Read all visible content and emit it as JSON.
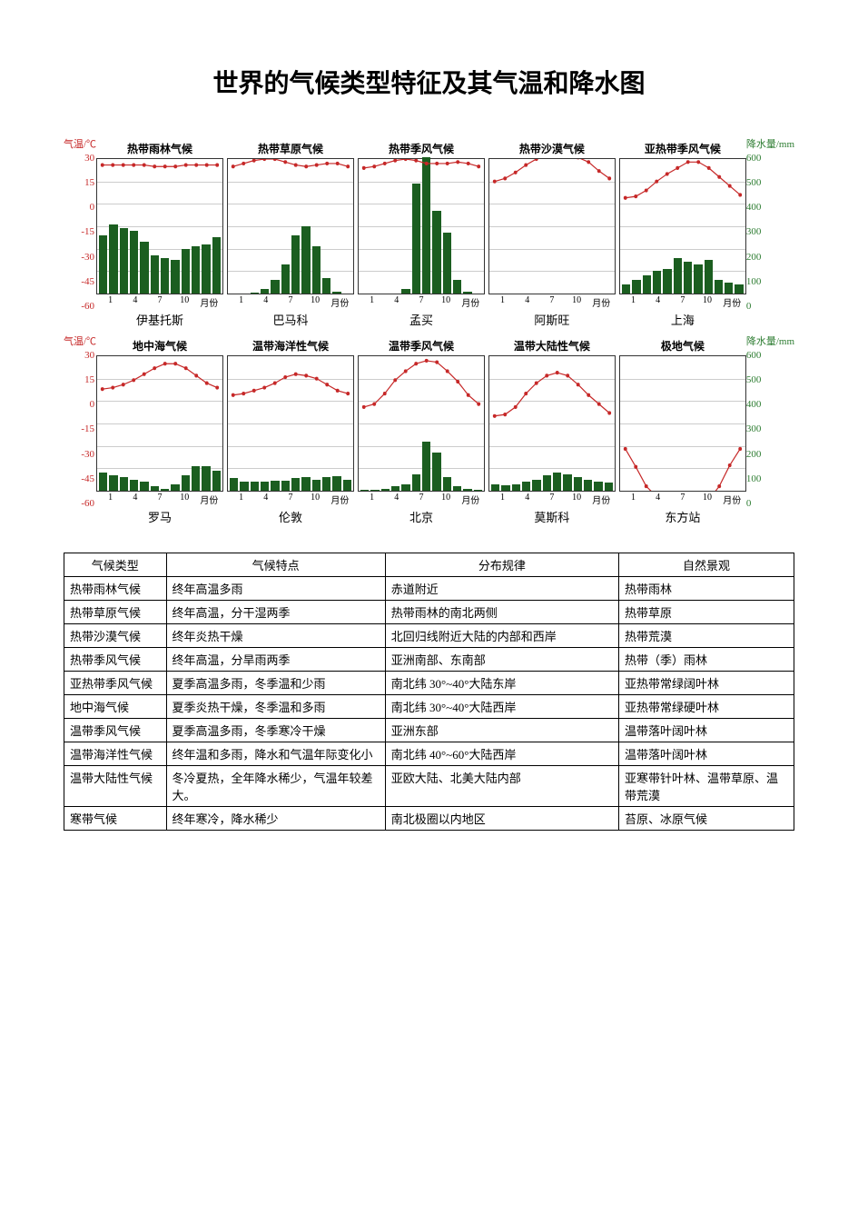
{
  "title": "世界的气候类型特征及其气温和降水图",
  "axis": {
    "left_title": "气温/℃",
    "right_title": "降水量/mm",
    "temp_ticks": [
      "30",
      "15",
      "0",
      "-15",
      "-30",
      "-45",
      "-60"
    ],
    "precip_ticks": [
      "600",
      "500",
      "400",
      "300",
      "200",
      "100",
      "0"
    ],
    "temp_min": -60,
    "temp_max": 30,
    "precip_min": 0,
    "precip_max": 600,
    "x_ticks": [
      "1",
      "4",
      "7",
      "10",
      "月份"
    ],
    "grid_color": "#cccccc",
    "bar_color": "#1b5e20",
    "line_color": "#c62828",
    "marker": "dot"
  },
  "rows": [
    {
      "panels": [
        {
          "title": "热带雨林气候",
          "city": "伊基托斯",
          "temp": [
            26,
            26,
            26,
            26,
            26,
            25,
            25,
            25,
            26,
            26,
            26,
            26
          ],
          "precip": [
            260,
            310,
            290,
            280,
            230,
            170,
            160,
            150,
            200,
            210,
            220,
            250
          ]
        },
        {
          "title": "热带草原气候",
          "city": "巴马科",
          "temp": [
            25,
            27,
            29,
            30,
            30,
            28,
            26,
            25,
            26,
            27,
            27,
            25
          ],
          "precip": [
            0,
            0,
            5,
            20,
            60,
            130,
            260,
            300,
            210,
            70,
            10,
            0
          ]
        },
        {
          "title": "热带季风气候",
          "city": "孟买",
          "temp": [
            24,
            25,
            27,
            29,
            30,
            29,
            27,
            27,
            27,
            28,
            27,
            25
          ],
          "precip": [
            0,
            0,
            0,
            0,
            20,
            490,
            610,
            370,
            270,
            60,
            10,
            0
          ]
        },
        {
          "title": "热带沙漠气候",
          "city": "阿斯旺",
          "temp": [
            15,
            17,
            21,
            26,
            30,
            32,
            33,
            33,
            31,
            28,
            22,
            17
          ],
          "precip": [
            0,
            0,
            0,
            0,
            0,
            0,
            0,
            0,
            0,
            0,
            0,
            0
          ]
        },
        {
          "title": "亚热带季风气候",
          "city": "上海",
          "temp": [
            4,
            5,
            9,
            15,
            20,
            24,
            28,
            28,
            24,
            18,
            12,
            6
          ],
          "precip": [
            40,
            60,
            80,
            100,
            110,
            160,
            140,
            130,
            150,
            60,
            50,
            40
          ]
        }
      ]
    },
    {
      "panels": [
        {
          "title": "地中海气候",
          "city": "罗马",
          "temp": [
            8,
            9,
            11,
            14,
            18,
            22,
            25,
            25,
            22,
            17,
            12,
            9
          ],
          "precip": [
            80,
            70,
            60,
            50,
            40,
            20,
            10,
            30,
            70,
            110,
            110,
            90
          ]
        },
        {
          "title": "温带海洋性气候",
          "city": "伦敦",
          "temp": [
            4,
            5,
            7,
            9,
            12,
            16,
            18,
            17,
            15,
            11,
            7,
            5
          ],
          "precip": [
            55,
            40,
            40,
            40,
            45,
            45,
            55,
            60,
            50,
            60,
            65,
            50
          ]
        },
        {
          "title": "温带季风气候",
          "city": "北京",
          "temp": [
            -4,
            -2,
            5,
            14,
            20,
            25,
            27,
            26,
            20,
            13,
            4,
            -2
          ],
          "precip": [
            3,
            5,
            8,
            20,
            30,
            75,
            220,
            170,
            60,
            20,
            8,
            3
          ]
        },
        {
          "title": "温带大陆性气候",
          "city": "莫斯科",
          "temp": [
            -10,
            -9,
            -4,
            5,
            12,
            17,
            19,
            17,
            11,
            4,
            -2,
            -8
          ],
          "precip": [
            30,
            25,
            30,
            40,
            50,
            70,
            80,
            75,
            60,
            50,
            40,
            35
          ]
        },
        {
          "title": "极地气候",
          "city": "东方站",
          "temp": [
            -32,
            -44,
            -57,
            -64,
            -65,
            -65,
            -66,
            -67,
            -66,
            -57,
            -43,
            -32
          ],
          "precip": [
            0,
            0,
            0,
            0,
            0,
            0,
            0,
            0,
            0,
            0,
            0,
            0
          ],
          "precip_visual_note": "line dips to bottom; this panel mainly shows extreme low temps crossing baseline"
        }
      ]
    }
  ],
  "table": {
    "headers": [
      "气候类型",
      "气候特点",
      "分布规律",
      "自然景观"
    ],
    "rows": [
      [
        "热带雨林气候",
        "终年高温多雨",
        "赤道附近",
        "热带雨林"
      ],
      [
        "热带草原气候",
        "终年高温，分干湿两季",
        "热带雨林的南北两侧",
        "热带草原"
      ],
      [
        "热带沙漠气候",
        "终年炎热干燥",
        "北回归线附近大陆的内部和西岸",
        "热带荒漠"
      ],
      [
        "热带季风气候",
        "终年高温，分旱雨两季",
        "亚洲南部、东南部",
        "热带（季）雨林"
      ],
      [
        "亚热带季风气候",
        "夏季高温多雨，冬季温和少雨",
        "南北纬 30°~40°大陆东岸",
        "亚热带常绿阔叶林"
      ],
      [
        "地中海气候",
        "夏季炎热干燥，冬季温和多雨",
        "南北纬 30°~40°大陆西岸",
        "亚热带常绿硬叶林"
      ],
      [
        "温带季风气候",
        "夏季高温多雨，冬季寒冷干燥",
        "亚洲东部",
        "温带落叶阔叶林"
      ],
      [
        "温带海洋性气候",
        "终年温和多雨，降水和气温年际变化小",
        "南北纬 40°~60°大陆西岸",
        "温带落叶阔叶林"
      ],
      [
        "温带大陆性气候",
        "冬冷夏热，全年降水稀少，气温年较差大。",
        "亚欧大陆、北美大陆内部",
        "亚寒带针叶林、温带草原、温带荒漠"
      ],
      [
        "寒带气候",
        "终年寒冷，降水稀少",
        "南北极圈以内地区",
        "苔原、冰原气候"
      ]
    ]
  }
}
